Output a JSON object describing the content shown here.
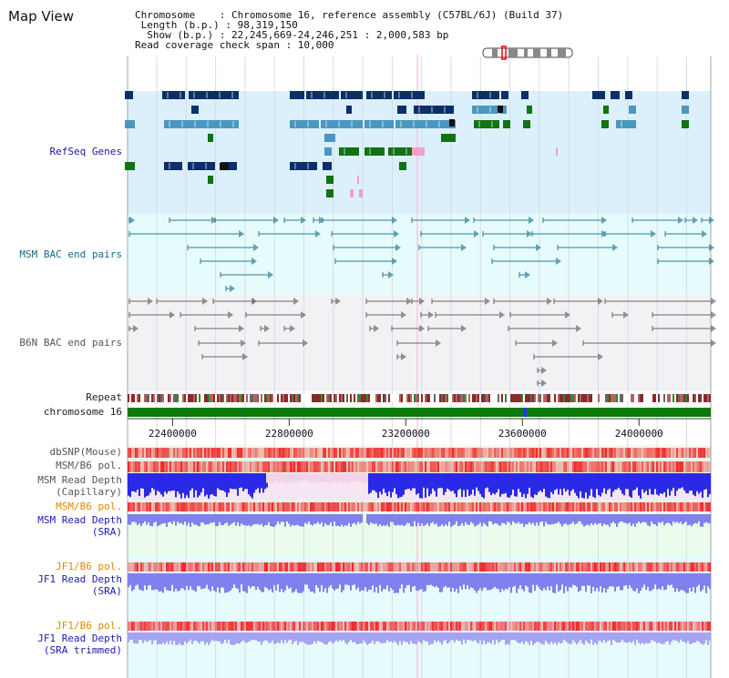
{
  "page": {
    "title": "Map View"
  },
  "info": {
    "chromosome_row": "Chromosome    : Chromosome 16, reference assembly (C57BL/6J) (Build 37)",
    "length_row": " Length (b.p.) : 98,319,150",
    "show_row": "  Show (b.p.) : 22,245,669-24,246,251 : 2,000,583 bp",
    "coverage_row": "Read coverage check span : 10,000"
  },
  "tracks": {
    "refseq": "RefSeq Genes",
    "msm_bac": "MSM BAC end pairs",
    "b6n_bac": "B6N BAC end pairs",
    "repeat": "Repeat",
    "chromosome": "chromosome 16",
    "dbsnp": "dbSNP(Mouse)",
    "msm_b6_pol": "MSM/B6 pol.",
    "msm_read_depth_cap_1": "MSM Read Depth",
    "msm_read_depth_cap_2": "(Capillary)",
    "msm_b6_pol_sra": "MSM/B6 pol.",
    "msm_read_depth_sra_1": "MSM Read Depth",
    "msm_read_depth_sra_2": "(SRA)",
    "jf1_b6_pol": "JF1/B6 pol.",
    "jf1_read_depth_1": "JF1 Read Depth",
    "jf1_read_depth_2": "(SRA)",
    "jf1_b6_pol_trim": "JF1/B6 pol.",
    "jf1_read_depth_trim_1": "JF1 Read Depth",
    "jf1_read_depth_trim_2": "(SRA trimmed)"
  },
  "axis": {
    "ticks": [
      "22400000",
      "22800000",
      "23200000",
      "23600000",
      "24000000"
    ]
  },
  "colors": {
    "refseq_bg": "#dcf0fb",
    "bac_bg": "#e6fbfb",
    "b6n_bg": "#f2f2f5",
    "depth_bg": "#ecfcec",
    "chromosome_bar": "#0a7a0a",
    "gene_dark": "#0c2f6b",
    "gene_light": "#4a97c0",
    "gene_green": "#117311",
    "gene_pink": "#f4a0c8",
    "depth_blue": "#2a2ae6",
    "depth_light": "#8080ee",
    "pol_red": "#ee3333",
    "label_orange": "#e08a00"
  }
}
